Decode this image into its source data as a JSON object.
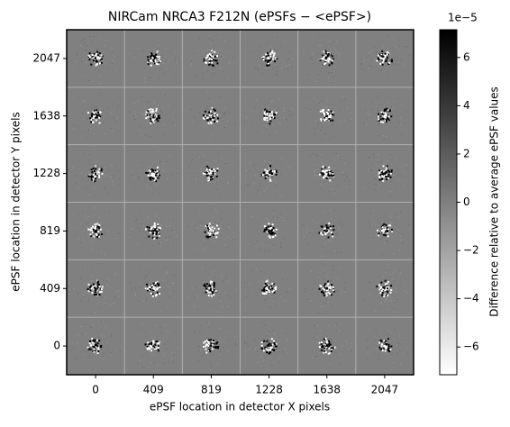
{
  "chart_data": {
    "type": "image-grid",
    "title": "NIRCam NRCA3 F212N (ePSFs − <ePSF>)",
    "x_label": "ePSF location in detector X pixels",
    "y_label": "ePSF location in detector Y pixels",
    "x_categories": [
      0,
      409,
      819,
      1228,
      1638,
      2047
    ],
    "y_categories": [
      0,
      409,
      819,
      1228,
      1638,
      2047
    ],
    "colorbar": {
      "label": "Difference relative to average ePSF values",
      "offset": "1e−5",
      "lim": [
        -7.15,
        7.15
      ],
      "ticks": [
        {
          "value": -6,
          "label": "−6"
        },
        {
          "value": -4,
          "label": "−4"
        },
        {
          "value": -2,
          "label": "−2"
        },
        0,
        2,
        4,
        6
      ],
      "colors": [
        "#ffffff",
        "#000000"
      ]
    },
    "background": "#808080",
    "grid_color": "#b0b0b0"
  }
}
